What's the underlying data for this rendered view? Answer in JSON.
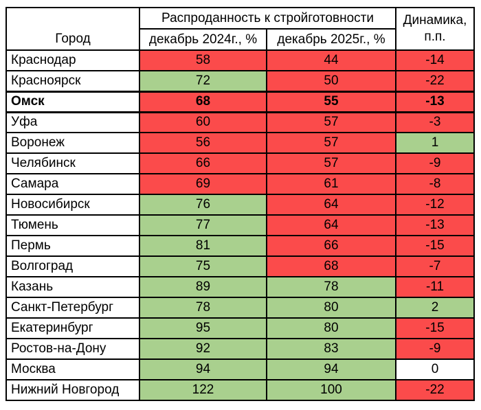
{
  "table": {
    "header": {
      "city": "Город",
      "group": "Распроданность к стройготовности",
      "col_2024": "декабрь 2024г., %",
      "col_2025": "декабрь 2025г., %",
      "dynamics": "Динамика, п.п."
    },
    "palette": {
      "red": "#FB4B4B",
      "green": "#A9D08E",
      "neutral": "#FFFFFF"
    },
    "rows": [
      {
        "city": "Краснодар",
        "v2024": 58,
        "v2025": 44,
        "delta": -14,
        "fills": [
          "red",
          "red",
          "red"
        ],
        "emphasized": false
      },
      {
        "city": "Красноярск",
        "v2024": 72,
        "v2025": 50,
        "delta": -22,
        "fills": [
          "green",
          "red",
          "red"
        ],
        "emphasized": false
      },
      {
        "city": "Омск",
        "v2024": 68,
        "v2025": 55,
        "delta": -13,
        "fills": [
          "red",
          "red",
          "red"
        ],
        "emphasized": true
      },
      {
        "city": "Уфа",
        "v2024": 60,
        "v2025": 57,
        "delta": -3,
        "fills": [
          "red",
          "red",
          "red"
        ],
        "emphasized": false
      },
      {
        "city": "Воронеж",
        "v2024": 56,
        "v2025": 57,
        "delta": 1,
        "fills": [
          "red",
          "red",
          "green"
        ],
        "emphasized": false
      },
      {
        "city": "Челябинск",
        "v2024": 66,
        "v2025": 57,
        "delta": -9,
        "fills": [
          "red",
          "red",
          "red"
        ],
        "emphasized": false
      },
      {
        "city": "Самара",
        "v2024": 69,
        "v2025": 61,
        "delta": -8,
        "fills": [
          "red",
          "red",
          "red"
        ],
        "emphasized": false
      },
      {
        "city": "Новосибирск",
        "v2024": 76,
        "v2025": 64,
        "delta": -12,
        "fills": [
          "green",
          "red",
          "red"
        ],
        "emphasized": false
      },
      {
        "city": "Тюмень",
        "v2024": 77,
        "v2025": 64,
        "delta": -13,
        "fills": [
          "green",
          "red",
          "red"
        ],
        "emphasized": false
      },
      {
        "city": "Пермь",
        "v2024": 81,
        "v2025": 66,
        "delta": -15,
        "fills": [
          "green",
          "red",
          "red"
        ],
        "emphasized": false
      },
      {
        "city": "Волгоград",
        "v2024": 75,
        "v2025": 68,
        "delta": -7,
        "fills": [
          "green",
          "red",
          "red"
        ],
        "emphasized": false
      },
      {
        "city": "Казань",
        "v2024": 89,
        "v2025": 78,
        "delta": -11,
        "fills": [
          "green",
          "green",
          "red"
        ],
        "emphasized": false
      },
      {
        "city": "Санкт-Петербург",
        "v2024": 78,
        "v2025": 80,
        "delta": 2,
        "fills": [
          "green",
          "green",
          "green"
        ],
        "emphasized": false
      },
      {
        "city": "Екатеринбург",
        "v2024": 95,
        "v2025": 80,
        "delta": -15,
        "fills": [
          "green",
          "green",
          "red"
        ],
        "emphasized": false
      },
      {
        "city": "Ростов-на-Дону",
        "v2024": 92,
        "v2025": 83,
        "delta": -9,
        "fills": [
          "green",
          "green",
          "red"
        ],
        "emphasized": false
      },
      {
        "city": "Москва",
        "v2024": 94,
        "v2025": 94,
        "delta": 0,
        "fills": [
          "green",
          "green",
          "neutral"
        ],
        "emphasized": false
      },
      {
        "city": "Нижний Новгород",
        "v2024": 122,
        "v2025": 100,
        "delta": -22,
        "fills": [
          "green",
          "green",
          "red"
        ],
        "emphasized": false
      }
    ]
  },
  "chart_data": {
    "type": "table",
    "title": "Распроданность к стройготовности",
    "columns": [
      "Город",
      "Распроданность к стройготовности — декабрь 2024г., %",
      "Распроданность к стройготовности — декабрь 2025г., %",
      "Динамика, п.п."
    ],
    "rows": [
      [
        "Краснодар",
        58,
        44,
        -14
      ],
      [
        "Красноярск",
        72,
        50,
        -22
      ],
      [
        "Омск",
        68,
        55,
        -13
      ],
      [
        "Уфа",
        60,
        57,
        -3
      ],
      [
        "Воронеж",
        56,
        57,
        1
      ],
      [
        "Челябинск",
        66,
        57,
        -9
      ],
      [
        "Самара",
        69,
        61,
        -8
      ],
      [
        "Новосибирск",
        76,
        64,
        -12
      ],
      [
        "Тюмень",
        77,
        64,
        -13
      ],
      [
        "Пермь",
        81,
        66,
        -15
      ],
      [
        "Волгоград",
        75,
        68,
        -7
      ],
      [
        "Казань",
        89,
        78,
        -11
      ],
      [
        "Санкт-Петербург",
        78,
        80,
        2
      ],
      [
        "Екатеринбург",
        95,
        80,
        -15
      ],
      [
        "Ростов-на-Дону",
        92,
        83,
        -9
      ],
      [
        "Москва",
        94,
        94,
        0
      ],
      [
        "Нижний Новгород",
        122,
        100,
        -22
      ]
    ],
    "conditional_fill": {
      "red": "#FB4B4B",
      "green": "#A9D08E",
      "white": "#FFFFFF"
    },
    "highlighted_row": "Омск"
  }
}
